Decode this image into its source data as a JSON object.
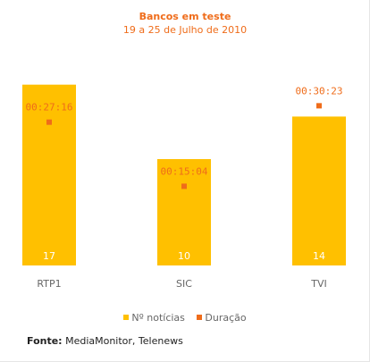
{
  "chart_data": {
    "type": "bar",
    "title": "Bancos em teste",
    "subtitle": "19 a 25 de Julho de 2010",
    "categories": [
      "RTP1",
      "SIC",
      "TVI"
    ],
    "series": [
      {
        "name": "Nº notícias",
        "type": "bar",
        "values": [
          17,
          10,
          14
        ],
        "color": "#ffc000"
      },
      {
        "name": "Duração",
        "type": "point",
        "values": [
          "00:27:16",
          "00:15:04",
          "00:30:23"
        ],
        "seconds": [
          1636,
          904,
          1823
        ],
        "color": "#ef6c1a"
      }
    ],
    "ylim_bars": [
      0,
      20
    ],
    "ylim_duration_seconds": [
      0,
      2300
    ],
    "legend_position": "bottom",
    "grid": false
  },
  "source": {
    "label": "Fonte:",
    "text": "MediaMonitor, Telenews"
  },
  "colors": {
    "bar": "#ffc000",
    "duration": "#ef6c1a",
    "title": "#ef6c1a",
    "axis_label": "#666666",
    "bar_label": "#ffffff"
  }
}
